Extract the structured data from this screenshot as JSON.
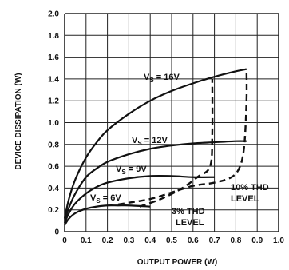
{
  "chart_data": {
    "type": "line",
    "xlabel": "OUTPUT POWER (W)",
    "ylabel": "DEVICE DISSIPATION (W)",
    "xlim": [
      0,
      1.0
    ],
    "ylim": [
      0,
      2.0
    ],
    "x_ticks": [
      "0",
      "0.1",
      "0.2",
      "0.3",
      "0.4",
      "0.5",
      "0.6",
      "0.7",
      "0.8",
      "0.9",
      "1.0"
    ],
    "y_ticks": [
      "0",
      "0.2",
      "0.4",
      "0.6",
      "0.8",
      "1.0",
      "1.2",
      "1.4",
      "1.6",
      "1.8",
      "2.0"
    ],
    "grid": true,
    "series": [
      {
        "name": "VS = 16V",
        "label_main": "V",
        "label_sub": "S",
        "label_rest": " = 16V",
        "style": "solid",
        "x": [
          0.0,
          0.02,
          0.05,
          0.1,
          0.15,
          0.2,
          0.3,
          0.4,
          0.5,
          0.6,
          0.7,
          0.8,
          0.85
        ],
        "y": [
          0.12,
          0.3,
          0.48,
          0.68,
          0.82,
          0.93,
          1.08,
          1.2,
          1.29,
          1.36,
          1.42,
          1.47,
          1.49
        ]
      },
      {
        "name": "VS = 12V",
        "label_main": "V",
        "label_sub": "S",
        "label_rest": " = 12V",
        "style": "solid",
        "x": [
          0.0,
          0.02,
          0.05,
          0.1,
          0.15,
          0.2,
          0.3,
          0.4,
          0.5,
          0.6,
          0.7,
          0.8,
          0.85
        ],
        "y": [
          0.1,
          0.22,
          0.35,
          0.5,
          0.58,
          0.64,
          0.71,
          0.76,
          0.79,
          0.81,
          0.82,
          0.83,
          0.83
        ]
      },
      {
        "name": "VS = 9V",
        "label_main": "V",
        "label_sub": "S",
        "label_rest": " = 9V",
        "style": "solid",
        "x": [
          0.0,
          0.02,
          0.05,
          0.1,
          0.15,
          0.2,
          0.3,
          0.4,
          0.5,
          0.6,
          0.7
        ],
        "y": [
          0.08,
          0.17,
          0.26,
          0.35,
          0.41,
          0.45,
          0.49,
          0.51,
          0.51,
          0.5,
          0.5
        ]
      },
      {
        "name": "VS = 6V",
        "label_main": "V",
        "label_sub": "S",
        "label_rest": " = 6V",
        "style": "solid",
        "x": [
          0.0,
          0.02,
          0.05,
          0.1,
          0.15,
          0.2,
          0.25,
          0.3,
          0.4
        ],
        "y": [
          0.06,
          0.12,
          0.17,
          0.21,
          0.23,
          0.24,
          0.24,
          0.24,
          0.23
        ]
      },
      {
        "name": "10% THD LEVEL",
        "label_line1": "10% THD",
        "label_line2": "LEVEL",
        "style": "dashed",
        "x": [
          0.25,
          0.4,
          0.5,
          0.6,
          0.7,
          0.78,
          0.82,
          0.84,
          0.85,
          0.85
        ],
        "y": [
          0.25,
          0.3,
          0.36,
          0.42,
          0.45,
          0.5,
          0.6,
          0.8,
          1.2,
          1.49
        ]
      },
      {
        "name": "3% THD LEVEL",
        "label_line1": "3% THD",
        "label_line2": "LEVEL",
        "style": "dashed",
        "x": [
          0.35,
          0.45,
          0.55,
          0.62,
          0.68,
          0.69,
          0.69
        ],
        "y": [
          0.23,
          0.3,
          0.4,
          0.5,
          0.6,
          0.9,
          1.4
        ]
      }
    ]
  }
}
